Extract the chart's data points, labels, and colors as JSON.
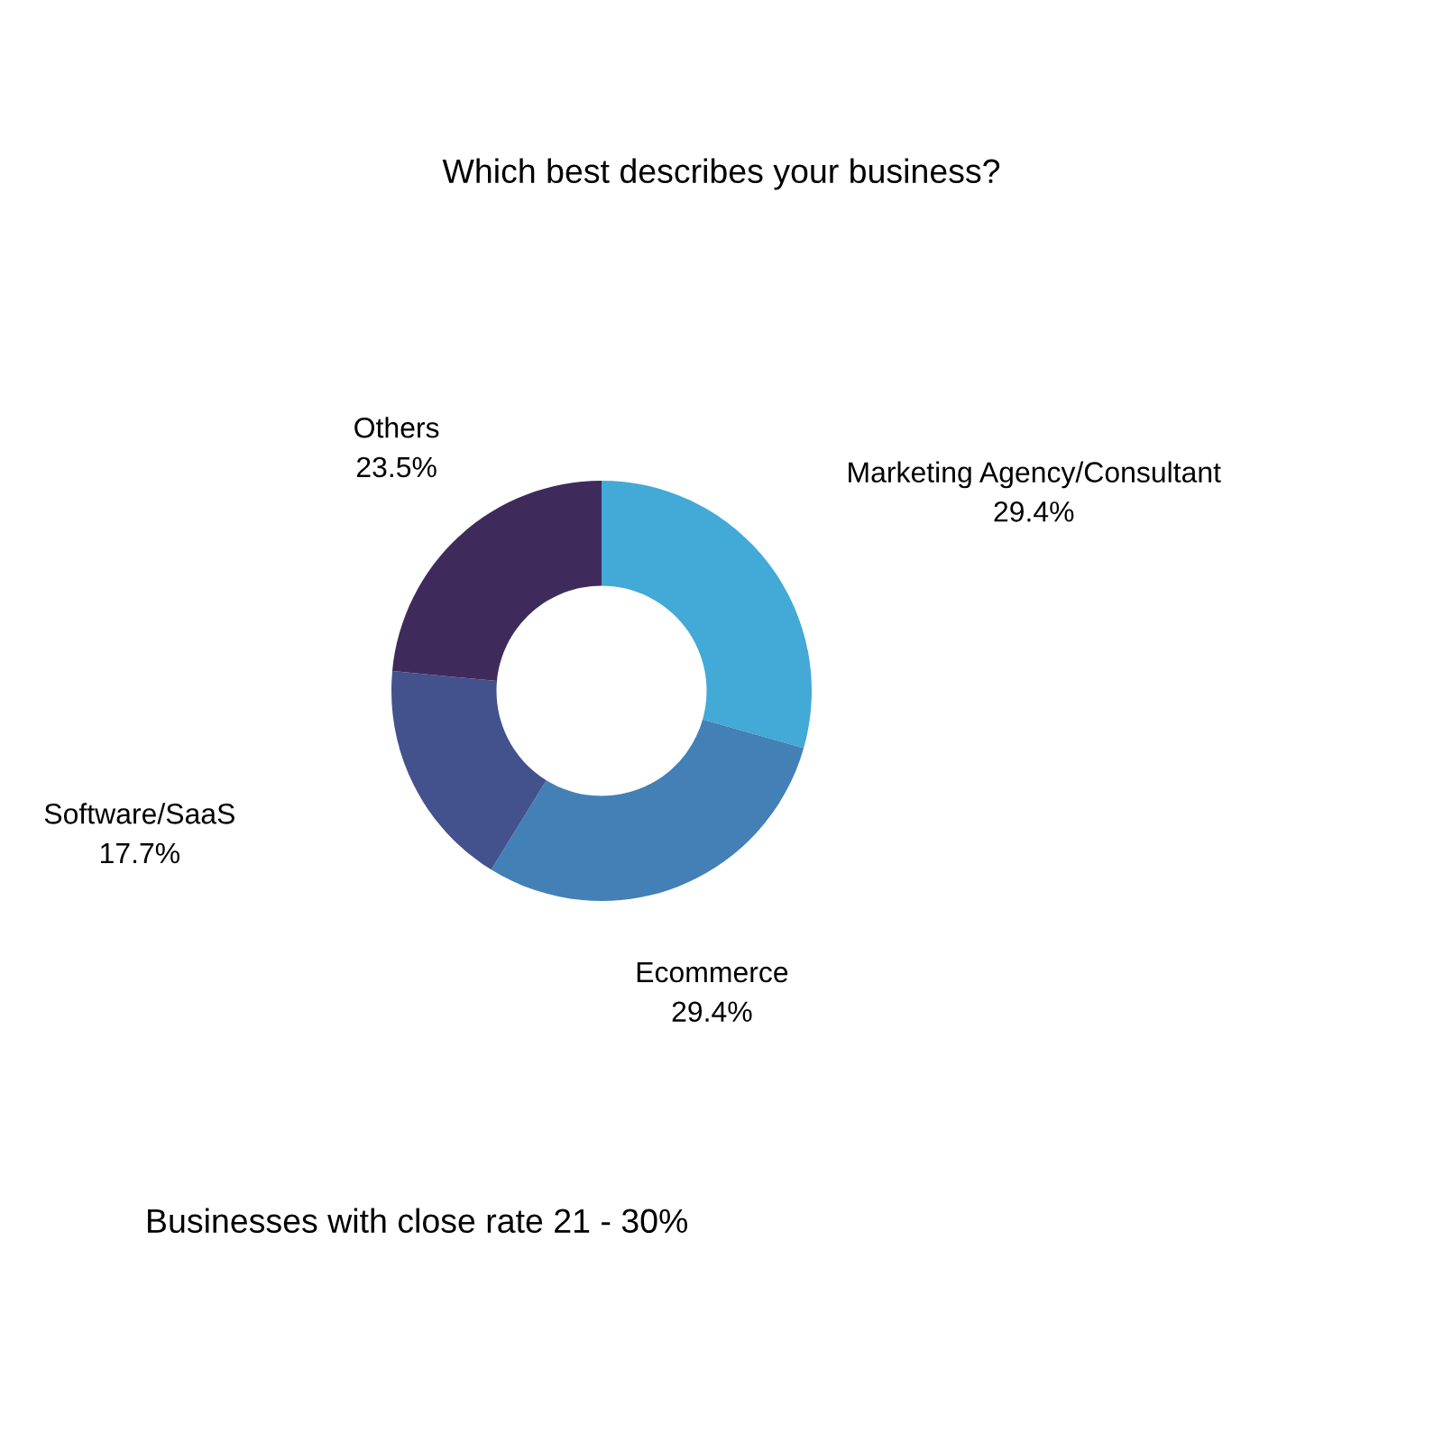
{
  "chart_data": {
    "type": "donut",
    "title": "Which best describes your business?",
    "categories": [
      "Marketing Agency/Consultant",
      "Ecommerce",
      "Software/SaaS",
      "Others"
    ],
    "values": [
      29.4,
      29.4,
      17.7,
      23.5
    ],
    "value_labels": [
      "29.4%",
      "29.4%",
      "17.7%",
      "23.5%"
    ],
    "colors": [
      "#43a9d6",
      "#4380b6",
      "#43528c",
      "#3e2b5c"
    ],
    "annotations": [
      "Businesses with close rate 21 - 30%"
    ],
    "legend": false
  }
}
